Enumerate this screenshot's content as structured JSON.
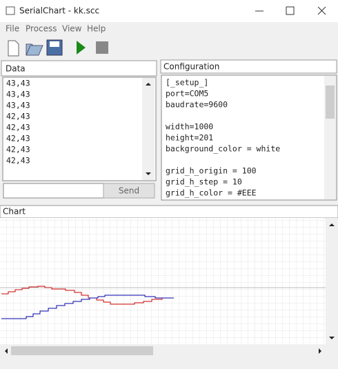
{
  "window": {
    "title": "SerialChart - kk.scc"
  },
  "menu": [
    "File",
    "Process",
    "View",
    "Help"
  ],
  "data_panel": {
    "title": "Data",
    "lines": [
      "43,43",
      "43,43",
      "43,43",
      "42,43",
      "42,43",
      "42,43",
      "42,43",
      "42,43"
    ],
    "send": "Send"
  },
  "config_panel": {
    "title": "Configuration",
    "blocks": [
      [
        "[_setup_]",
        "port=COM5",
        "baudrate=9600"
      ],
      [
        "width=1000",
        "height=201",
        "background_color = white"
      ],
      [
        "grid_h_origin = 100",
        "grid_h_step = 10",
        "grid_h_color = #EEE"
      ]
    ]
  },
  "chart_panel": {
    "title": "Chart"
  }
}
